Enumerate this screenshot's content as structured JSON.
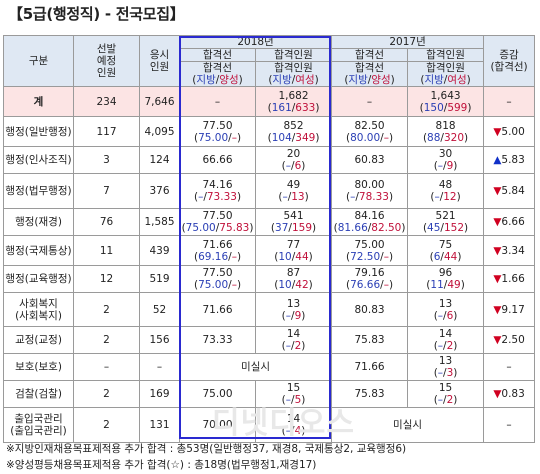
{
  "title": "【5급(행정직) - 전국모집】",
  "header": {
    "category": "구분",
    "planned": [
      "선발",
      "예정",
      "인원"
    ],
    "applicants": [
      "응시",
      "인원"
    ],
    "y2018": "2018년",
    "y2017": "2017년",
    "cutoff": "합격선",
    "cutoff_sub_a": "지방",
    "cutoff_sub_b": "양성",
    "passers": "합격인원",
    "passers_sub_a": "지방",
    "passers_sub_b": "여성",
    "change": [
      "증감",
      "(합격선)"
    ]
  },
  "total": {
    "label": "계",
    "planned": "234",
    "applicants": "7,646",
    "c18": "–",
    "p18_main": "1,682",
    "p18_a": "161",
    "p18_b": "633",
    "c17": "–",
    "p17_main": "1,643",
    "p17_a": "150",
    "p17_b": "599",
    "change": "–"
  },
  "rows": [
    {
      "label": "행정(일반행정)",
      "planned": "117",
      "applicants": "4,095",
      "c18_main": "77.50",
      "c18_a": "75.00",
      "c18_b": "–",
      "p18_main": "852",
      "p18_a": "104",
      "p18_b": "349",
      "c17_main": "82.50",
      "c17_a": "80.00",
      "c17_b": "–",
      "p17_main": "818",
      "p17_a": "88",
      "p17_b": "320",
      "dir": "down",
      "change": "5.00"
    },
    {
      "label": "행정(인사조직)",
      "planned": "3",
      "applicants": "124",
      "c18_main": "66.66",
      "p18_main": "20",
      "p18_a": "–",
      "p18_b": "6",
      "c17_main": "60.83",
      "p17_main": "30",
      "p17_a": "–",
      "p17_b": "9",
      "dir": "up",
      "change": "5.83"
    },
    {
      "label": "행정(법무행정)",
      "planned": "7",
      "applicants": "376",
      "c18_main": "74.16",
      "c18_a": "–",
      "c18_b": "73.33",
      "p18_main": "49",
      "p18_a": "–",
      "p18_b": "13",
      "c17_main": "80.00",
      "c17_a": "–",
      "c17_b": "78.33",
      "p17_main": "48",
      "p17_a": "–",
      "p17_b": "12",
      "dir": "down",
      "change": "5.84"
    },
    {
      "label": "행정(재경)",
      "planned": "76",
      "applicants": "1,585",
      "c18_main": "77.50",
      "c18_a": "75.00",
      "c18_b": "75.83",
      "p18_main": "541",
      "p18_a": "37",
      "p18_b": "159",
      "c17_main": "84.16",
      "c17_a": "81.66",
      "c17_b": "82.50",
      "p17_main": "521",
      "p17_a": "45",
      "p17_b": "152",
      "dir": "down",
      "change": "6.66"
    },
    {
      "label": "행정(국제통상)",
      "planned": "11",
      "applicants": "439",
      "c18_main": "71.66",
      "c18_a": "69.16",
      "c18_b": "–",
      "p18_main": "77",
      "p18_a": "10",
      "p18_b": "44",
      "c17_main": "75.00",
      "c17_a": "72.50",
      "c17_b": "–",
      "p17_main": "75",
      "p17_a": "6",
      "p17_b": "44",
      "dir": "down",
      "change": "3.34"
    },
    {
      "label": "행정(교육행정)",
      "planned": "12",
      "applicants": "519",
      "c18_main": "77.50",
      "c18_a": "75.00",
      "c18_b": "–",
      "p18_main": "87",
      "p18_a": "10",
      "p18_b": "42",
      "c17_main": "79.16",
      "c17_a": "76.66",
      "c17_b": "–",
      "p17_main": "96",
      "p17_a": "11",
      "p17_b": "49",
      "dir": "down",
      "change": "1.66"
    },
    {
      "label": "사회복지",
      "label2": "(사회복지)",
      "planned": "2",
      "applicants": "52",
      "c18_main": "71.66",
      "p18_main": "13",
      "p18_a": "–",
      "p18_b": "9",
      "c17_main": "80.83",
      "p17_main": "13",
      "p17_a": "–",
      "p17_b": "6",
      "dir": "down",
      "change": "9.17"
    },
    {
      "label": "교정(교정)",
      "planned": "2",
      "applicants": "156",
      "c18_main": "73.33",
      "p18_main": "14",
      "p18_a": "–",
      "p18_b": "2",
      "c17_main": "75.83",
      "p17_main": "14",
      "p17_a": "–",
      "p17_b": "2",
      "dir": "down",
      "change": "2.50"
    },
    {
      "label": "보호(보호)",
      "planned": "–",
      "applicants": "–",
      "note18": "미실시",
      "c17_main": "71.66",
      "p17_main": "13",
      "p17_a": "–",
      "p17_b": "3",
      "change": "–"
    },
    {
      "label": "검찰(검찰)",
      "planned": "2",
      "applicants": "169",
      "c18_main": "75.00",
      "p18_main": "15",
      "p18_a": "–",
      "p18_b": "5",
      "c17_main": "75.83",
      "p17_main": "15",
      "p17_a": "–",
      "p17_b": "2",
      "dir": "down",
      "change": "0.83"
    },
    {
      "label": "출입국관리",
      "label2": "(출입국관리)",
      "planned": "2",
      "applicants": "131",
      "c18_main": "70.00",
      "p18_main": "14",
      "p18_a": "–",
      "p18_b": "4",
      "note17": "미실시",
      "change": "–"
    }
  ],
  "notes": [
    "※지방인재채용목표제적용 추가 합격 : 총53명(일반행정37, 재경8, 국제통상2, 교육행정6)",
    "※양성평등채용목표제적용 추가 합격(☆) : 총18명(법무행정1,재경17)"
  ],
  "watermark": "디넷디오스",
  "colors": {
    "blue": "#2b3fb5",
    "red": "#c0103a",
    "header_bg": "#dfe8f3",
    "total_bg": "#fce4e4",
    "box": "#2a2ad0",
    "down": "#d00020",
    "up": "#1030c8"
  }
}
